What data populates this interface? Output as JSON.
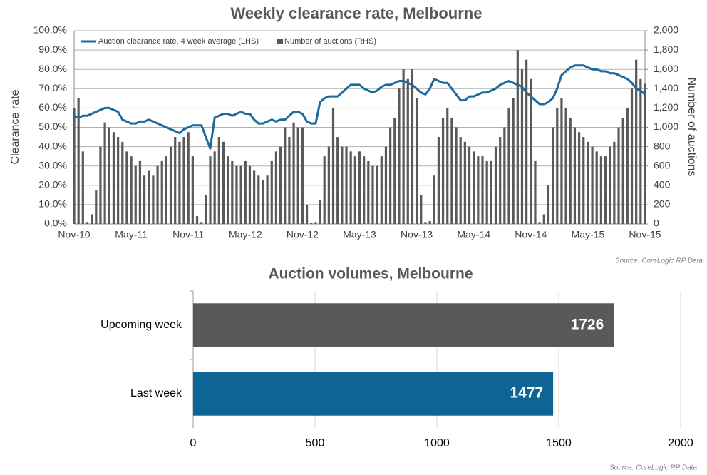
{
  "chart_data": [
    {
      "type": "bar-line",
      "title": "Weekly clearance rate, Melbourne",
      "y_label": "Clearance rate",
      "y2_label": "Number of auctions",
      "source": "Source: CoreLogic  RP Data",
      "legend": "top-left",
      "categories": [
        "Nov-10",
        null,
        null,
        null,
        null,
        null,
        null,
        null,
        null,
        null,
        null,
        null,
        null,
        "May-11",
        null,
        null,
        null,
        null,
        null,
        null,
        null,
        null,
        null,
        null,
        null,
        null,
        "Nov-11",
        null,
        null,
        null,
        null,
        null,
        null,
        null,
        null,
        null,
        null,
        null,
        null,
        "May-12",
        null,
        null,
        null,
        null,
        null,
        null,
        null,
        null,
        null,
        null,
        null,
        null,
        "Nov-12",
        null,
        null,
        null,
        null,
        null,
        null,
        null,
        null,
        null,
        null,
        null,
        null,
        "May-13",
        null,
        null,
        null,
        null,
        null,
        null,
        null,
        null,
        null,
        null,
        null,
        null,
        "Nov-13",
        null,
        null,
        null,
        null,
        null,
        null,
        null,
        null,
        null,
        null,
        null,
        null,
        "May-14",
        null,
        null,
        null,
        null,
        null,
        null,
        null,
        null,
        null,
        null,
        null,
        null,
        "Nov-14",
        null,
        null,
        null,
        null,
        null,
        null,
        null,
        null,
        null,
        null,
        null,
        null,
        "May-15",
        null,
        null,
        null,
        null,
        null,
        null,
        null,
        null,
        null,
        null,
        null,
        null,
        "Nov-15"
      ],
      "ylim": [
        0,
        100
      ],
      "yticks": [
        {
          "value": 0,
          "label": "0.0%"
        },
        {
          "value": 10,
          "label": "10.0%"
        },
        {
          "value": 20,
          "label": "20.0%"
        },
        {
          "value": 30,
          "label": "30.0%"
        },
        {
          "value": 40,
          "label": "40.0%"
        },
        {
          "value": 50,
          "label": "50.0%"
        },
        {
          "value": 60,
          "label": "60.0%"
        },
        {
          "value": 70,
          "label": "70.0%"
        },
        {
          "value": 80,
          "label": "80.0%"
        },
        {
          "value": 90,
          "label": "90.0%"
        },
        {
          "value": 100,
          "label": "100.0%"
        }
      ],
      "y2lim": [
        0,
        2000
      ],
      "y2ticks": [
        0,
        200,
        400,
        600,
        800,
        {
          "value": 1000,
          "label": "1,000"
        },
        {
          "value": 1200,
          "label": "1,200"
        },
        {
          "value": 1400,
          "label": "1,400"
        },
        {
          "value": 1600,
          "label": "1,600"
        },
        {
          "value": 1800,
          "label": "1,800"
        },
        {
          "value": 2000,
          "label": "2,000"
        }
      ],
      "grid": true,
      "series": [
        {
          "name": "Number of auctions (RHS)",
          "type": "bar",
          "axis": "y2",
          "color": "#595959",
          "values": [
            1200,
            1300,
            750,
            20,
            100,
            350,
            800,
            1050,
            1000,
            950,
            900,
            850,
            750,
            700,
            600,
            650,
            500,
            550,
            500,
            600,
            650,
            700,
            800,
            900,
            850,
            900,
            950,
            700,
            80,
            20,
            300,
            700,
            750,
            900,
            850,
            700,
            650,
            600,
            600,
            650,
            600,
            550,
            500,
            450,
            500,
            650,
            750,
            800,
            1000,
            900,
            1050,
            1000,
            1000,
            200,
            10,
            20,
            250,
            700,
            800,
            1200,
            900,
            800,
            800,
            750,
            700,
            750,
            700,
            650,
            600,
            600,
            700,
            800,
            1000,
            1100,
            1400,
            1600,
            1500,
            1600,
            1300,
            300,
            20,
            30,
            500,
            900,
            1100,
            1200,
            1100,
            1000,
            900,
            850,
            800,
            750,
            700,
            700,
            650,
            650,
            800,
            900,
            1000,
            1200,
            1300,
            1800,
            1600,
            1700,
            1500,
            650,
            20,
            100,
            400,
            1000,
            1200,
            1300,
            1200,
            1100,
            1000,
            950,
            900,
            850,
            800,
            750,
            700,
            700,
            800,
            850,
            1000,
            1100,
            1200,
            1400,
            1700,
            1500,
            1450
          ]
        },
        {
          "name": "Auction clearance rate, 4 week average (LHS)",
          "type": "line",
          "axis": "y",
          "color": "#1a6a9a",
          "values": [
            56,
            55,
            56,
            56,
            57,
            58,
            59,
            60,
            60,
            59,
            58,
            54,
            53,
            52,
            52,
            53,
            53,
            54,
            53,
            52,
            51,
            50,
            49,
            48,
            47,
            49,
            50,
            51,
            51,
            51,
            45,
            39,
            55,
            56,
            57,
            57,
            56,
            57,
            58,
            57,
            57,
            54,
            52,
            52,
            53,
            54,
            53,
            54,
            54,
            56,
            58,
            58,
            57,
            53,
            52,
            52,
            63,
            65,
            66,
            66,
            66,
            68,
            70,
            72,
            72,
            72,
            70,
            69,
            68,
            69,
            71,
            72,
            72,
            73,
            74,
            74,
            73,
            72,
            70,
            68,
            67,
            70,
            75,
            74,
            73,
            73,
            70,
            67,
            64,
            64,
            66,
            66,
            67,
            68,
            68,
            69,
            70,
            72,
            73,
            74,
            73,
            72,
            71,
            68,
            66,
            64,
            62,
            62,
            63,
            65,
            70,
            77,
            79,
            81,
            82,
            82,
            82,
            81,
            80,
            80,
            79,
            79,
            78,
            78,
            77,
            76,
            75,
            73,
            70,
            69,
            67
          ]
        }
      ]
    },
    {
      "type": "hbar",
      "title": "Auction volumes, Melbourne",
      "source": "Source: CoreLogic  RP Data",
      "categories": [
        "Upcoming week",
        "Last week"
      ],
      "values": [
        1726,
        1477
      ],
      "colors": [
        "#595959",
        "#0f6496"
      ],
      "xlim": [
        0,
        2000
      ],
      "xticks": [
        0,
        500,
        1000,
        1500,
        2000
      ],
      "grid": true
    }
  ]
}
